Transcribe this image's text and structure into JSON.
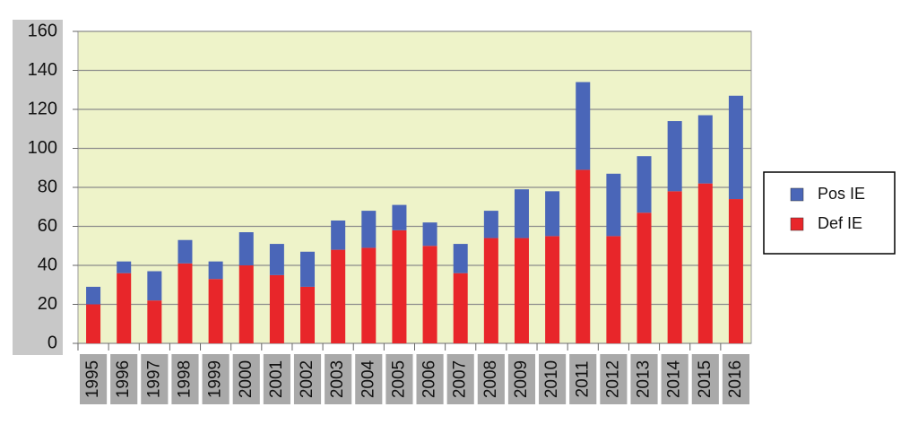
{
  "chart_data": {
    "type": "stacked_bar",
    "categories": [
      "1995",
      "1996",
      "1997",
      "1998",
      "1999",
      "2000",
      "2001",
      "2002",
      "2003",
      "2004",
      "2005",
      "2006",
      "2007",
      "2008",
      "2009",
      "2010",
      "2011",
      "2012",
      "2013",
      "2014",
      "2015",
      "2016"
    ],
    "series": [
      {
        "name": "Pos IE",
        "color": "#4a66b8",
        "values": [
          9,
          6,
          15,
          12,
          9,
          17,
          16,
          18,
          15,
          19,
          13,
          12,
          15,
          14,
          25,
          23,
          45,
          32,
          29,
          36,
          35,
          53
        ]
      },
      {
        "name": "Def IE",
        "color": "#e8262a",
        "values": [
          20,
          36,
          22,
          41,
          33,
          40,
          35,
          29,
          48,
          49,
          58,
          50,
          36,
          54,
          54,
          55,
          89,
          55,
          67,
          78,
          82,
          74
        ]
      }
    ],
    "ylim": [
      0,
      160
    ],
    "yticks": [
      0,
      20,
      40,
      60,
      80,
      100,
      120,
      140,
      160
    ],
    "grid": true,
    "legend": "right"
  }
}
